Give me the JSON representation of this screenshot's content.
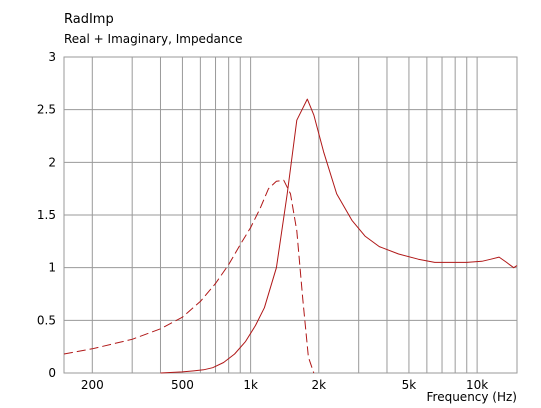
{
  "chart_data": {
    "type": "line",
    "title": "RadImp",
    "subtitle": "Real + Imaginary, Impedance",
    "xlabel": "Frequency  (Hz)",
    "ylabel": "",
    "xscale": "log",
    "xlim": [
      150,
      15000
    ],
    "ylim": [
      0,
      3
    ],
    "grid": true,
    "colors": {
      "series": "#b01818",
      "grid": "#9a9a9a",
      "frame": "#9a9a9a"
    },
    "x_ticks": [
      {
        "value": 200,
        "label": "200"
      },
      {
        "value": 500,
        "label": "500"
      },
      {
        "value": 1000,
        "label": "1k"
      },
      {
        "value": 2000,
        "label": "2k"
      },
      {
        "value": 5000,
        "label": "5k"
      },
      {
        "value": 10000,
        "label": "10k"
      }
    ],
    "y_ticks": [
      {
        "value": 0,
        "label": "0"
      },
      {
        "value": 0.5,
        "label": "0.5"
      },
      {
        "value": 1,
        "label": "1"
      },
      {
        "value": 1.5,
        "label": "1.5"
      },
      {
        "value": 2,
        "label": "2"
      },
      {
        "value": 2.5,
        "label": "2.5"
      },
      {
        "value": 3,
        "label": "3"
      }
    ],
    "series": [
      {
        "style": "solid",
        "x": [
          400,
          500,
          560,
          620,
          680,
          760,
          850,
          950,
          1050,
          1150,
          1300,
          1450,
          1600,
          1780,
          1900,
          2100,
          2400,
          2800,
          3200,
          3700,
          4500,
          5500,
          6500,
          7500,
          9000,
          10500,
          11500,
          12500,
          13500,
          14500,
          15000
        ],
        "y": [
          0,
          0.01,
          0.02,
          0.03,
          0.05,
          0.1,
          0.18,
          0.3,
          0.45,
          0.62,
          1.0,
          1.7,
          2.4,
          2.6,
          2.45,
          2.1,
          1.7,
          1.45,
          1.3,
          1.2,
          1.13,
          1.08,
          1.05,
          1.05,
          1.05,
          1.06,
          1.08,
          1.1,
          1.05,
          1.0,
          1.02
        ]
      },
      {
        "style": "dashed",
        "x": [
          150,
          200,
          300,
          400,
          500,
          600,
          700,
          800,
          900,
          1000,
          1100,
          1200,
          1300,
          1400,
          1500,
          1600,
          1700,
          1800,
          1900
        ],
        "y": [
          0.18,
          0.23,
          0.32,
          0.42,
          0.53,
          0.68,
          0.85,
          1.03,
          1.22,
          1.38,
          1.56,
          1.75,
          1.82,
          1.83,
          1.7,
          1.35,
          0.7,
          0.15,
          0
        ]
      }
    ]
  }
}
